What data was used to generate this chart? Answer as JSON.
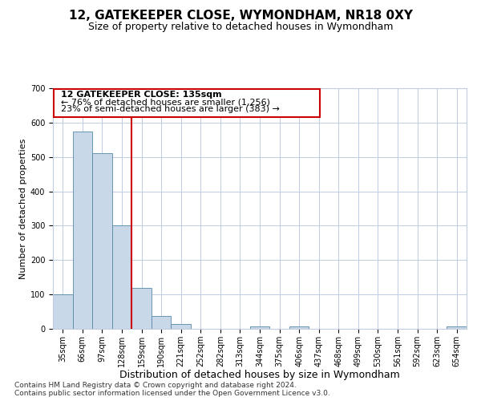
{
  "title": "12, GATEKEEPER CLOSE, WYMONDHAM, NR18 0XY",
  "subtitle": "Size of property relative to detached houses in Wymondham",
  "xlabel": "Distribution of detached houses by size in Wymondham",
  "ylabel": "Number of detached properties",
  "categories": [
    "35sqm",
    "66sqm",
    "97sqm",
    "128sqm",
    "159sqm",
    "190sqm",
    "221sqm",
    "252sqm",
    "282sqm",
    "313sqm",
    "344sqm",
    "375sqm",
    "406sqm",
    "437sqm",
    "468sqm",
    "499sqm",
    "530sqm",
    "561sqm",
    "592sqm",
    "623sqm",
    "654sqm"
  ],
  "values": [
    100,
    575,
    510,
    300,
    118,
    38,
    14,
    0,
    0,
    0,
    8,
    0,
    8,
    0,
    0,
    0,
    0,
    0,
    0,
    0,
    8
  ],
  "bar_color": "#c8d8e8",
  "bar_edge_color": "#5588aa",
  "vline_color": "#cc0000",
  "ylim": [
    0,
    700
  ],
  "yticks": [
    0,
    100,
    200,
    300,
    400,
    500,
    600,
    700
  ],
  "annotation_title": "12 GATEKEEPER CLOSE: 135sqm",
  "annotation_line1": "← 76% of detached houses are smaller (1,256)",
  "annotation_line2": "23% of semi-detached houses are larger (383) →",
  "annotation_box_color": "#cc0000",
  "footnote1": "Contains HM Land Registry data © Crown copyright and database right 2024.",
  "footnote2": "Contains public sector information licensed under the Open Government Licence v3.0.",
  "bg_color": "#ffffff",
  "grid_color": "#c0cce0",
  "title_fontsize": 11,
  "subtitle_fontsize": 9,
  "xlabel_fontsize": 9,
  "ylabel_fontsize": 8,
  "tick_fontsize": 7,
  "annotation_fontsize": 8,
  "footnote_fontsize": 6.5
}
